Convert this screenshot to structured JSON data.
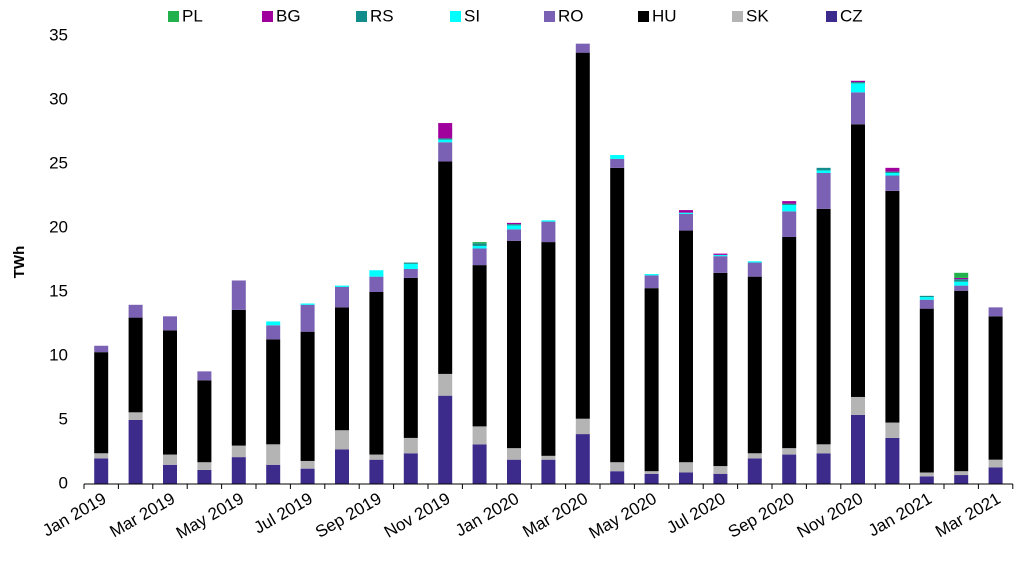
{
  "chart_data": {
    "type": "stacked_bar",
    "y_label": "TWh",
    "categories": [
      "Jan 2019",
      null,
      "Mar 2019",
      null,
      "May 2019",
      null,
      "Jul 2019",
      null,
      "Sep 2019",
      null,
      "Nov 2019",
      null,
      "Jan 2020",
      null,
      "Mar 2020",
      null,
      "May 2020",
      null,
      "Jul 2020",
      null,
      "Sep 2020",
      null,
      "Nov 2020",
      null,
      "Jan 2021",
      null,
      "Mar 2021"
    ],
    "ylim": [
      0,
      35
    ],
    "yticks": [
      0,
      5,
      10,
      15,
      20,
      25,
      30,
      35
    ],
    "grid": false,
    "series": [
      {
        "name": "CZ",
        "color": "#3d2b8c",
        "values": [
          2.0,
          5.0,
          1.5,
          1.1,
          2.1,
          1.5,
          1.2,
          2.7,
          1.9,
          2.4,
          6.9,
          3.1,
          1.9,
          1.9,
          3.9,
          1.0,
          0.8,
          0.9,
          0.8,
          2.0,
          2.3,
          2.4,
          5.4,
          3.6,
          0.6,
          0.7,
          1.3
        ]
      },
      {
        "name": "SK",
        "color": "#b4b4b4",
        "values": [
          0.4,
          0.6,
          0.8,
          0.6,
          0.9,
          1.6,
          0.6,
          1.5,
          0.4,
          1.2,
          1.7,
          1.4,
          0.9,
          0.3,
          1.2,
          0.7,
          0.2,
          0.8,
          0.6,
          0.4,
          0.5,
          0.7,
          1.4,
          1.2,
          0.3,
          0.3,
          0.6
        ]
      },
      {
        "name": "HU",
        "color": "#000000",
        "values": [
          7.9,
          7.4,
          9.7,
          6.4,
          10.6,
          8.2,
          10.1,
          9.6,
          12.7,
          12.5,
          16.6,
          12.6,
          16.2,
          16.7,
          28.6,
          23.0,
          14.3,
          18.1,
          15.1,
          13.8,
          16.5,
          18.4,
          21.3,
          18.1,
          12.8,
          14.1,
          11.2
        ]
      },
      {
        "name": "RO",
        "color": "#7b61b4",
        "values": [
          0.5,
          1.0,
          1.1,
          0.7,
          2.3,
          1.1,
          2.1,
          1.6,
          1.2,
          0.7,
          1.5,
          1.3,
          0.9,
          1.6,
          0.7,
          0.7,
          1.0,
          1.3,
          1.3,
          1.1,
          2.0,
          2.8,
          2.5,
          1.2,
          0.7,
          0.4,
          0.7
        ]
      },
      {
        "name": "SI",
        "color": "#00ffff",
        "values": [
          0,
          0,
          0,
          0,
          0,
          0.3,
          0.1,
          0.1,
          0.5,
          0.4,
          0.2,
          0.2,
          0.3,
          0.1,
          0,
          0.3,
          0.1,
          0.1,
          0.1,
          0.1,
          0.5,
          0.2,
          0.7,
          0.2,
          0.2,
          0.3,
          0
        ]
      },
      {
        "name": "RS",
        "color": "#138c8c",
        "values": [
          0,
          0,
          0,
          0,
          0,
          0,
          0,
          0,
          0,
          0.1,
          0.1,
          0.2,
          0.1,
          0,
          0,
          0,
          0,
          0,
          0,
          0,
          0.1,
          0.2,
          0.1,
          0.1,
          0.1,
          0.2,
          0
        ]
      },
      {
        "name": "BG",
        "color": "#a0009c",
        "values": [
          0,
          0,
          0,
          0,
          0,
          0,
          0,
          0,
          0,
          0,
          1.2,
          0,
          0.1,
          0,
          0,
          0,
          0,
          0.2,
          0.1,
          0,
          0.2,
          0,
          0.1,
          0.3,
          0,
          0.1,
          0
        ]
      },
      {
        "name": "PL",
        "color": "#22b14c",
        "values": [
          0,
          0,
          0,
          0,
          0,
          0,
          0,
          0,
          0,
          0,
          0,
          0.1,
          0,
          0,
          0,
          0,
          0,
          0,
          0,
          0,
          0,
          0,
          0,
          0,
          0,
          0.4,
          0
        ]
      }
    ]
  }
}
